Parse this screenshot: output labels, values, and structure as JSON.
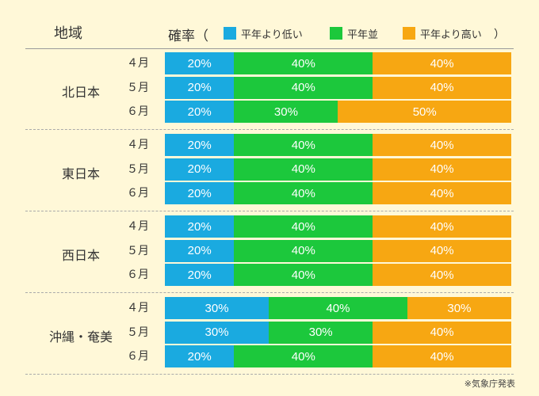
{
  "header": {
    "region_label": "地域",
    "probability_label": "確率（",
    "close_paren": "）"
  },
  "colors": {
    "below": "#1aaae0",
    "normal": "#1cc83c",
    "above": "#f7a712"
  },
  "chart_data": {
    "type": "bar",
    "stacked": true,
    "orientation": "horizontal",
    "legend": [
      "平年より低い",
      "平年並",
      "平年より高い"
    ],
    "groups": [
      {
        "region": "北日本",
        "rows": [
          {
            "month": "４月",
            "values": [
              20,
              40,
              40
            ]
          },
          {
            "month": "５月",
            "values": [
              20,
              40,
              40
            ]
          },
          {
            "month": "６月",
            "values": [
              20,
              30,
              50
            ]
          }
        ]
      },
      {
        "region": "東日本",
        "rows": [
          {
            "month": "４月",
            "values": [
              20,
              40,
              40
            ]
          },
          {
            "month": "５月",
            "values": [
              20,
              40,
              40
            ]
          },
          {
            "month": "６月",
            "values": [
              20,
              40,
              40
            ]
          }
        ]
      },
      {
        "region": "西日本",
        "rows": [
          {
            "month": "４月",
            "values": [
              20,
              40,
              40
            ]
          },
          {
            "month": "５月",
            "values": [
              20,
              40,
              40
            ]
          },
          {
            "month": "６月",
            "values": [
              20,
              40,
              40
            ]
          }
        ]
      },
      {
        "region": "沖縄・奄美",
        "rows": [
          {
            "month": "４月",
            "values": [
              30,
              40,
              30
            ]
          },
          {
            "month": "５月",
            "values": [
              30,
              30,
              40
            ]
          },
          {
            "month": "６月",
            "values": [
              20,
              40,
              40
            ]
          }
        ]
      }
    ]
  },
  "source": "※気象庁発表"
}
